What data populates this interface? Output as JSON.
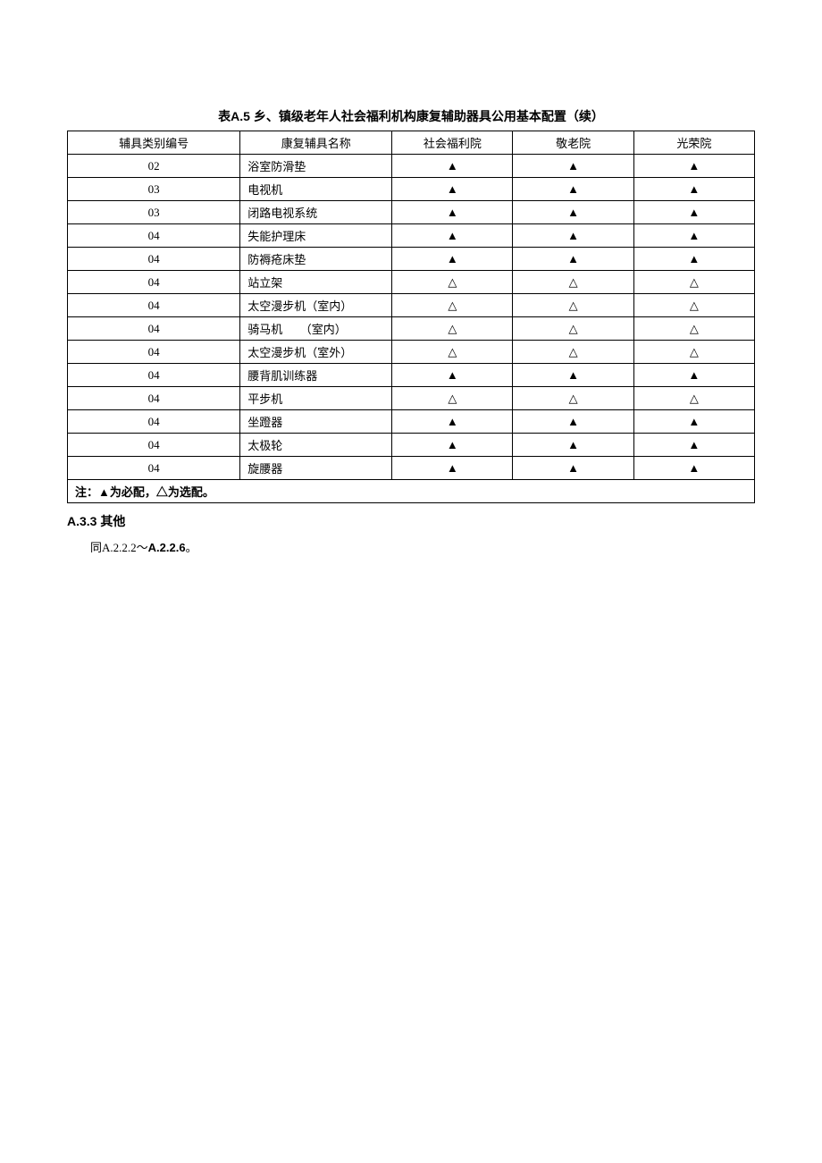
{
  "table": {
    "title": "表A.5  乡、镇级老年人社会福利机构康复辅助器具公用基本配置（续）",
    "headers": {
      "id": "辅具类别编号",
      "name": "康复辅具名称",
      "inst1": "社会福利院",
      "inst2": "敬老院",
      "inst3": "光荣院"
    },
    "symbols": {
      "required": "▲",
      "optional": "△"
    },
    "rows": [
      {
        "id": "02",
        "name": "浴室防滑垫",
        "c1": "required",
        "c2": "required",
        "c3": "required"
      },
      {
        "id": "03",
        "name": "电视机",
        "c1": "required",
        "c2": "required",
        "c3": "required"
      },
      {
        "id": "03",
        "name": "闭路电视系统",
        "c1": "required",
        "c2": "required",
        "c3": "required"
      },
      {
        "id": "04",
        "name": "失能护理床",
        "c1": "required",
        "c2": "required",
        "c3": "required"
      },
      {
        "id": "04",
        "name": "防褥疮床垫",
        "c1": "required",
        "c2": "required",
        "c3": "required"
      },
      {
        "id": "04",
        "name": "站立架",
        "c1": "optional",
        "c2": "optional",
        "c3": "optional"
      },
      {
        "id": "04",
        "name": "太空漫步机（室内）",
        "c1": "optional",
        "c2": "optional",
        "c3": "optional"
      },
      {
        "id": "04",
        "name": "骑马机　　（室内）",
        "c1": "optional",
        "c2": "optional",
        "c3": "optional"
      },
      {
        "id": "04",
        "name": "太空漫步机（室外）",
        "c1": "optional",
        "c2": "optional",
        "c3": "optional"
      },
      {
        "id": "04",
        "name": "腰背肌训练器",
        "c1": "required",
        "c2": "required",
        "c3": "required"
      },
      {
        "id": "04",
        "name": "平步机",
        "c1": "optional",
        "c2": "optional",
        "c3": "optional"
      },
      {
        "id": "04",
        "name": "坐蹬器",
        "c1": "required",
        "c2": "required",
        "c3": "required"
      },
      {
        "id": "04",
        "name": "太极轮",
        "c1": "required",
        "c2": "required",
        "c3": "required"
      },
      {
        "id": "04",
        "name": "旋腰器",
        "c1": "required",
        "c2": "required",
        "c3": "required"
      }
    ],
    "note": "注：▲为必配，△为选配。"
  },
  "section": {
    "heading": "A.3.3  其他",
    "bodyPrefix": "同A.2.2.2～",
    "bodyBold": "A.2.2.6",
    "bodySuffix": "。"
  }
}
